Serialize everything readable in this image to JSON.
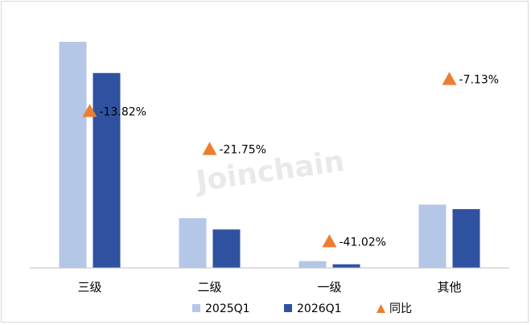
{
  "chart_data": {
    "type": "bar",
    "categories": [
      "三级",
      "二级",
      "一级",
      "其他"
    ],
    "series": [
      {
        "name": "2025Q1",
        "color": "#b4c7e7",
        "values": [
          100,
          22,
          3,
          28
        ]
      },
      {
        "name": "2026Q1",
        "color": "#2f52a0",
        "values": [
          86.2,
          17,
          1.6,
          26
        ]
      }
    ],
    "yoy": {
      "name": "同比",
      "color": "#ed7d31",
      "marker": "triangle",
      "values": [
        -13.82,
        -21.75,
        -41.02,
        -7.13
      ],
      "labels": [
        "-13.82%",
        "-21.75%",
        "-41.02%",
        "-7.13%"
      ]
    },
    "xlabel": "",
    "ylabel": "",
    "ylim": [
      0,
      100
    ],
    "yoy_ylim": [
      -45,
      0
    ],
    "grid": false,
    "legend": "bottom"
  },
  "watermark": "Joinchain"
}
